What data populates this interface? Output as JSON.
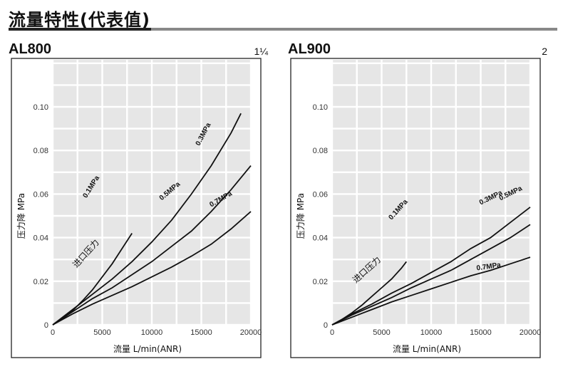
{
  "page": {
    "title": "流量特性(代表值)"
  },
  "chart_data": [
    {
      "type": "line",
      "model": "AL800",
      "size": "1¼",
      "xlabel": "流量 L/min(ANR)",
      "ylabel": "压力降 MPa",
      "xticks": [
        "0",
        "5000",
        "10000",
        "15000",
        "20000"
      ],
      "yticks": [
        "0",
        "0.02",
        "0.04",
        "0.06",
        "0.08",
        "0.10"
      ],
      "xlim": [
        0,
        20000
      ],
      "ylim": [
        0,
        0.1
      ],
      "annotation": "进口压力",
      "series": [
        {
          "name": "0.1MPa",
          "x": [
            0,
            1000,
            2000,
            3000,
            4000,
            5000,
            6000,
            7000,
            8000
          ],
          "y": [
            0,
            0.0028,
            0.0065,
            0.011,
            0.016,
            0.022,
            0.028,
            0.035,
            0.042
          ]
        },
        {
          "name": "0.3MPa",
          "x": [
            0,
            2000,
            4000,
            6000,
            8000,
            10000,
            12000,
            14000,
            16000,
            18000,
            19000
          ],
          "y": [
            0,
            0.007,
            0.014,
            0.021,
            0.029,
            0.038,
            0.048,
            0.06,
            0.073,
            0.088,
            0.097
          ]
        },
        {
          "name": "0.5MPa",
          "x": [
            0,
            2000,
            4000,
            6000,
            8000,
            10000,
            12000,
            14000,
            16000,
            18000,
            20000
          ],
          "y": [
            0,
            0.006,
            0.012,
            0.017,
            0.023,
            0.029,
            0.036,
            0.043,
            0.052,
            0.062,
            0.073
          ]
        },
        {
          "name": "0.7MPa",
          "x": [
            0,
            2000,
            4000,
            6000,
            8000,
            10000,
            12000,
            14000,
            16000,
            18000,
            20000
          ],
          "y": [
            0,
            0.005,
            0.0095,
            0.0135,
            0.0175,
            0.022,
            0.0265,
            0.0315,
            0.037,
            0.044,
            0.052
          ]
        }
      ]
    },
    {
      "type": "line",
      "model": "AL900",
      "size": "2",
      "xlabel": "流量 L/min(ANR)",
      "ylabel": "压力降 MPa",
      "xticks": [
        "0",
        "5000",
        "10000",
        "15000",
        "20000"
      ],
      "yticks": [
        "0",
        "0.02",
        "0.04",
        "0.06",
        "0.08",
        "0.10"
      ],
      "xlim": [
        0,
        20000
      ],
      "ylim": [
        0,
        0.1
      ],
      "annotation": "进口压力",
      "series": [
        {
          "name": "0.1MPa",
          "x": [
            0,
            1000,
            2000,
            3000,
            4000,
            5000,
            6000,
            7000,
            7500
          ],
          "y": [
            0,
            0.0025,
            0.0055,
            0.009,
            0.013,
            0.017,
            0.021,
            0.026,
            0.029
          ]
        },
        {
          "name": "0.3MPa",
          "x": [
            0,
            2000,
            4000,
            6000,
            8000,
            10000,
            12000,
            14000,
            16000,
            18000,
            20000
          ],
          "y": [
            0,
            0.005,
            0.0095,
            0.0145,
            0.019,
            0.024,
            0.029,
            0.035,
            0.04,
            0.047,
            0.054
          ]
        },
        {
          "name": "0.5MPa",
          "x": [
            0,
            2000,
            4000,
            6000,
            8000,
            10000,
            12000,
            14000,
            16000,
            18000,
            20000
          ],
          "y": [
            0,
            0.0045,
            0.0085,
            0.0125,
            0.017,
            0.021,
            0.025,
            0.03,
            0.035,
            0.04,
            0.046
          ]
        },
        {
          "name": "0.7MPa",
          "x": [
            0,
            2000,
            4000,
            6000,
            8000,
            10000,
            12000,
            14000,
            16000,
            18000,
            20000
          ],
          "y": [
            0,
            0.0035,
            0.007,
            0.0105,
            0.0135,
            0.0165,
            0.0195,
            0.0225,
            0.025,
            0.028,
            0.031
          ]
        }
      ]
    }
  ]
}
